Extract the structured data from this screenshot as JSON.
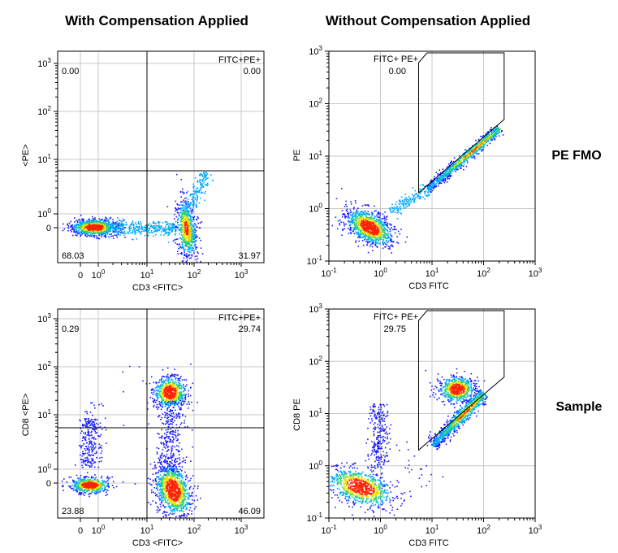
{
  "column_titles": {
    "left": "With Compensation Applied",
    "right": "Without Compensation Applied"
  },
  "row_labels": {
    "top": "PE FMO",
    "bottom": "Sample"
  },
  "colors": {
    "density_low": "#1a1aff",
    "density_mid1": "#00a8ff",
    "density_mid2": "#2bd17a",
    "density_mid3": "#e8e000",
    "density_high": "#ff2200",
    "grid": "#c8c8c8",
    "gate_line": "#000000"
  },
  "chart_data": [
    {
      "type": "scatter",
      "panel": "top-left",
      "scale": "biexponential",
      "xlabel": "CD3 <FITC>",
      "ylabel": "<PE>",
      "xticks": [
        "0",
        "10^0",
        "10^1",
        "10^2",
        "10^3"
      ],
      "yticks": [
        "0",
        "10^0",
        "10^1",
        "10^2",
        "10^3"
      ],
      "grid": true,
      "gate": "quadrant",
      "quadrant_labels": {
        "top_left": "0.00",
        "top_right_name": "FITC+PE+",
        "top_right": "0.00",
        "bottom_left": "68.03",
        "bottom_right": "31.97"
      },
      "populations": [
        {
          "name": "FITC- PE-",
          "x_center": 0.75,
          "y_center": 0,
          "fraction_percent": 68.03
        },
        {
          "name": "FITC+ PE-",
          "x_center": 100,
          "y_center": 0,
          "fraction_percent": 31.97
        }
      ]
    },
    {
      "type": "scatter",
      "panel": "top-right",
      "scale": "log",
      "xlabel": "CD3 FITC",
      "ylabel": "PE",
      "xlim": [
        0.1,
        1000
      ],
      "ylim": [
        0.1,
        1000
      ],
      "xticks": [
        "10^-1",
        "10^0",
        "10^1",
        "10^2",
        "10^3"
      ],
      "yticks": [
        "10^-1",
        "10^0",
        "10^1",
        "10^2",
        "10^3"
      ],
      "grid": true,
      "gate": "polygon",
      "gate_label_name": "FITC+ PE+",
      "gate_label_value": "0.00",
      "populations": [
        {
          "name": "FITC- PE-",
          "x_center": 0.6,
          "y_center": 0.45
        },
        {
          "name": "FITC+ diagonal (spillover)",
          "x_from": 5,
          "x_to": 200,
          "y_from": 1.5,
          "y_to": 40
        }
      ]
    },
    {
      "type": "scatter",
      "panel": "bottom-left",
      "scale": "biexponential",
      "xlabel": "CD3 <FITC>",
      "ylabel": "CD8 <PE>",
      "xticks": [
        "0",
        "10^0",
        "10^1",
        "10^2",
        "10^3"
      ],
      "yticks": [
        "0",
        "10^0",
        "10^1",
        "10^2",
        "10^3"
      ],
      "grid": true,
      "gate": "quadrant",
      "quadrant_labels": {
        "top_left": "0.29",
        "top_right_name": "FITC+PE+",
        "top_right": "29.74",
        "bottom_left": "23.88",
        "bottom_right": "46.09"
      },
      "populations": [
        {
          "name": "FITC- PE-",
          "x_center": 0.5,
          "y_center": 0,
          "fraction_percent": 23.88
        },
        {
          "name": "FITC+ PE+ (CD3+CD8+)",
          "x_center": 30,
          "y_center": 30,
          "fraction_percent": 29.74
        },
        {
          "name": "FITC+ PE- (CD3+CD8-)",
          "x_center": 35,
          "y_center": 0,
          "fraction_percent": 46.09
        }
      ]
    },
    {
      "type": "scatter",
      "panel": "bottom-right",
      "scale": "log",
      "xlabel": "CD3 FITC",
      "ylabel": "CD8 PE",
      "xlim": [
        0.1,
        1000
      ],
      "ylim": [
        0.1,
        1000
      ],
      "xticks": [
        "10^-1",
        "10^0",
        "10^1",
        "10^2",
        "10^3"
      ],
      "yticks": [
        "10^-1",
        "10^0",
        "10^1",
        "10^2",
        "10^3"
      ],
      "grid": true,
      "gate": "polygon",
      "gate_label_name": "FITC+ PE+",
      "gate_label_value": "29.75",
      "populations": [
        {
          "name": "FITC- PE-",
          "x_center": 0.4,
          "y_center": 0.4
        },
        {
          "name": "FITC+ PE+ (CD8+)",
          "x_center": 30,
          "y_center": 30
        },
        {
          "name": "FITC+ diagonal (spillover)",
          "x_from": 10,
          "x_to": 100,
          "y_from": 2.5,
          "y_to": 25
        }
      ]
    }
  ]
}
